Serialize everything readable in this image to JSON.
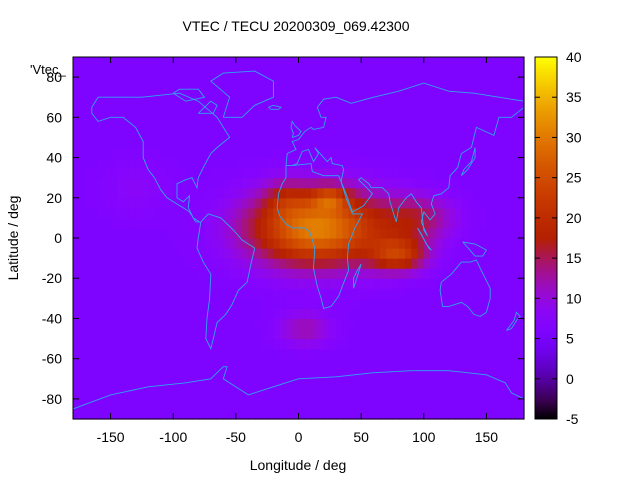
{
  "chart_data": {
    "type": "heatmap",
    "title": "VTEC / TECU 20200309_069.42300",
    "xlabel": "Longitude / deg",
    "ylabel": "Latitude / deg",
    "series_label": "'Vtec_",
    "xlim": [
      -180,
      180
    ],
    "ylim": [
      -90,
      90
    ],
    "x_ticks": [
      -150,
      -100,
      -50,
      0,
      50,
      100,
      150
    ],
    "y_ticks": [
      -80,
      -60,
      -40,
      -20,
      0,
      20,
      40,
      60,
      80
    ],
    "colorbar": {
      "range": [
        -5,
        40
      ],
      "ticks": [
        -5,
        0,
        5,
        10,
        15,
        20,
        25,
        30,
        35,
        40
      ],
      "colormap": "gnuplot"
    },
    "background_tec": 6,
    "features": [
      {
        "lon": 15,
        "lat": 5,
        "peak": 25,
        "sigma_lon": 38,
        "sigma_lat": 13
      },
      {
        "lon": 80,
        "lat": -8,
        "peak": 14,
        "sigma_lon": 16,
        "sigma_lat": 6
      },
      {
        "lon": 25,
        "lat": 20,
        "peak": 10,
        "sigma_lon": 10,
        "sigma_lat": 4
      },
      {
        "lon": 95,
        "lat": 10,
        "peak": 8,
        "sigma_lon": 20,
        "sigma_lat": 8
      },
      {
        "lon": 5,
        "lat": -45,
        "peak": 6,
        "sigma_lon": 15,
        "sigma_lat": 6
      },
      {
        "lon": -10,
        "lat": 20,
        "peak": 5,
        "sigma_lon": 12,
        "sigma_lat": 6
      },
      {
        "lon": -130,
        "lat": 25,
        "peak": 2,
        "sigma_lon": 20,
        "sigma_lat": 10
      }
    ],
    "coastline_color": "#2fa4f0",
    "grid": false
  }
}
